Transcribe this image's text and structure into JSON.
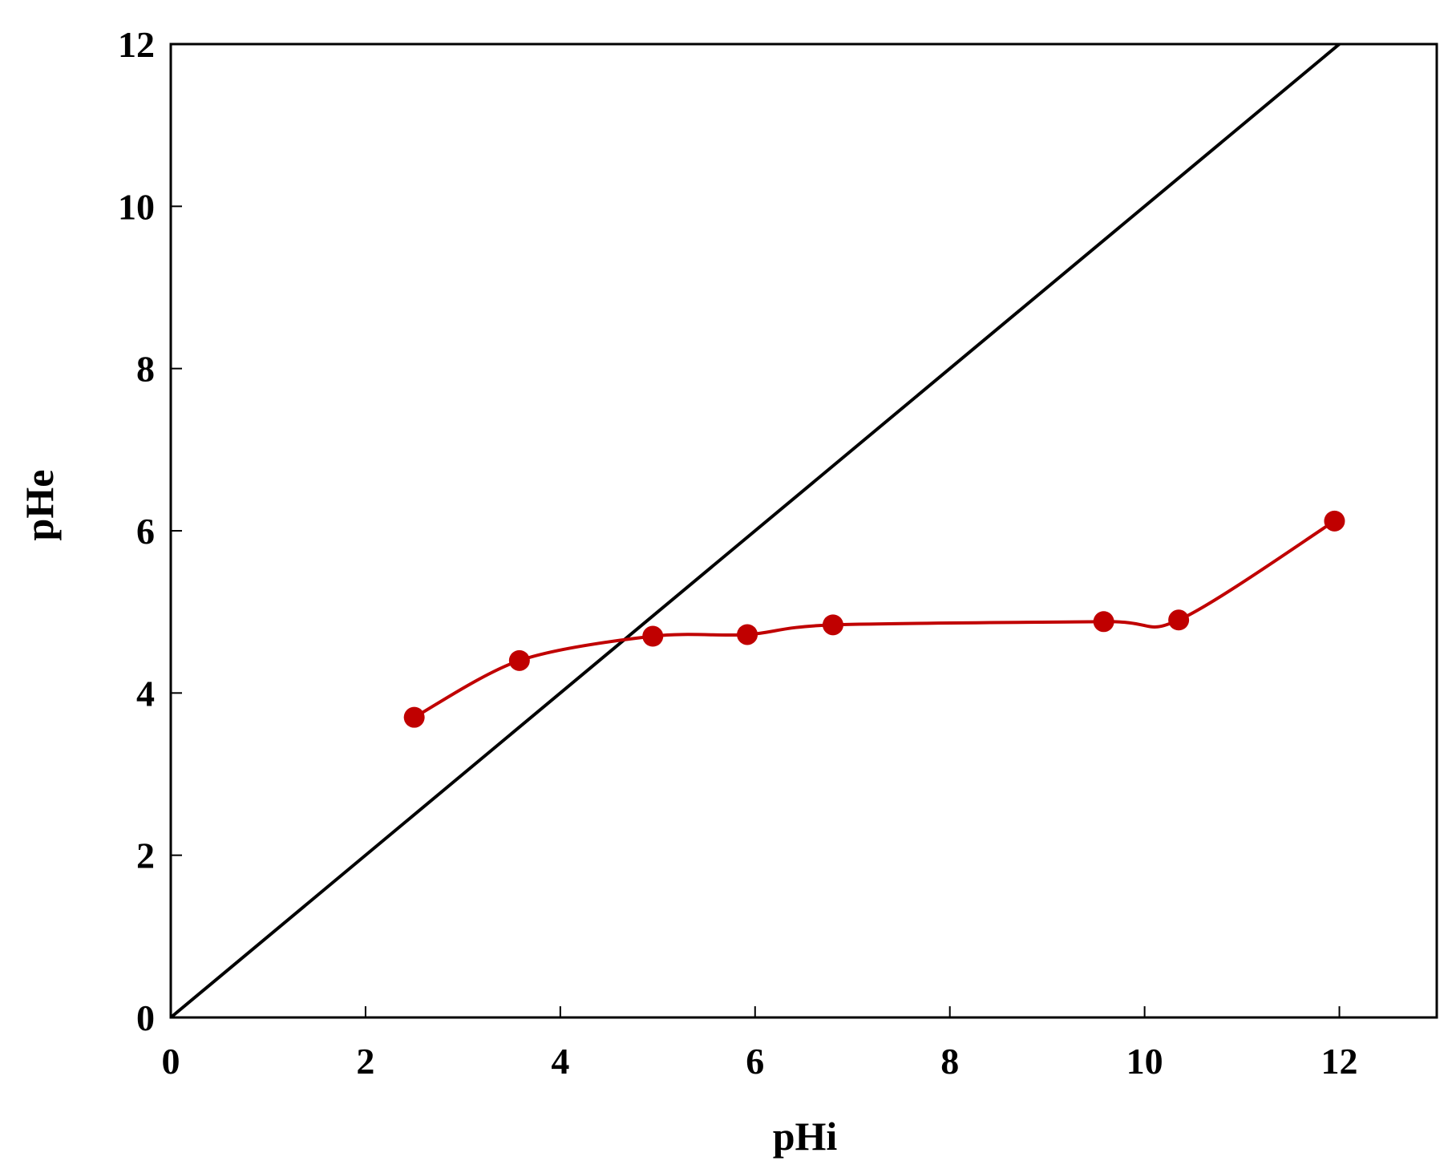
{
  "chart_data": {
    "type": "scatter",
    "xlabel": "pHi",
    "ylabel": "pHe",
    "xlim": [
      0,
      13
    ],
    "ylim": [
      0,
      12
    ],
    "x_ticks": [
      0,
      2,
      4,
      6,
      8,
      10,
      12
    ],
    "y_ticks": [
      0,
      2,
      4,
      6,
      8,
      10,
      12
    ],
    "grid": false,
    "legend": "none",
    "series": [
      {
        "style": "line",
        "color": "#000000",
        "x": [
          0,
          12
        ],
        "y": [
          0,
          12
        ]
      },
      {
        "style": "line-markers",
        "color": "#c00000",
        "x": [
          2.5,
          3.58,
          4.95,
          5.92,
          6.8,
          9.58,
          10.35,
          11.95
        ],
        "y": [
          3.7,
          4.4,
          4.7,
          4.72,
          4.84,
          4.88,
          4.9,
          6.12
        ]
      }
    ]
  }
}
